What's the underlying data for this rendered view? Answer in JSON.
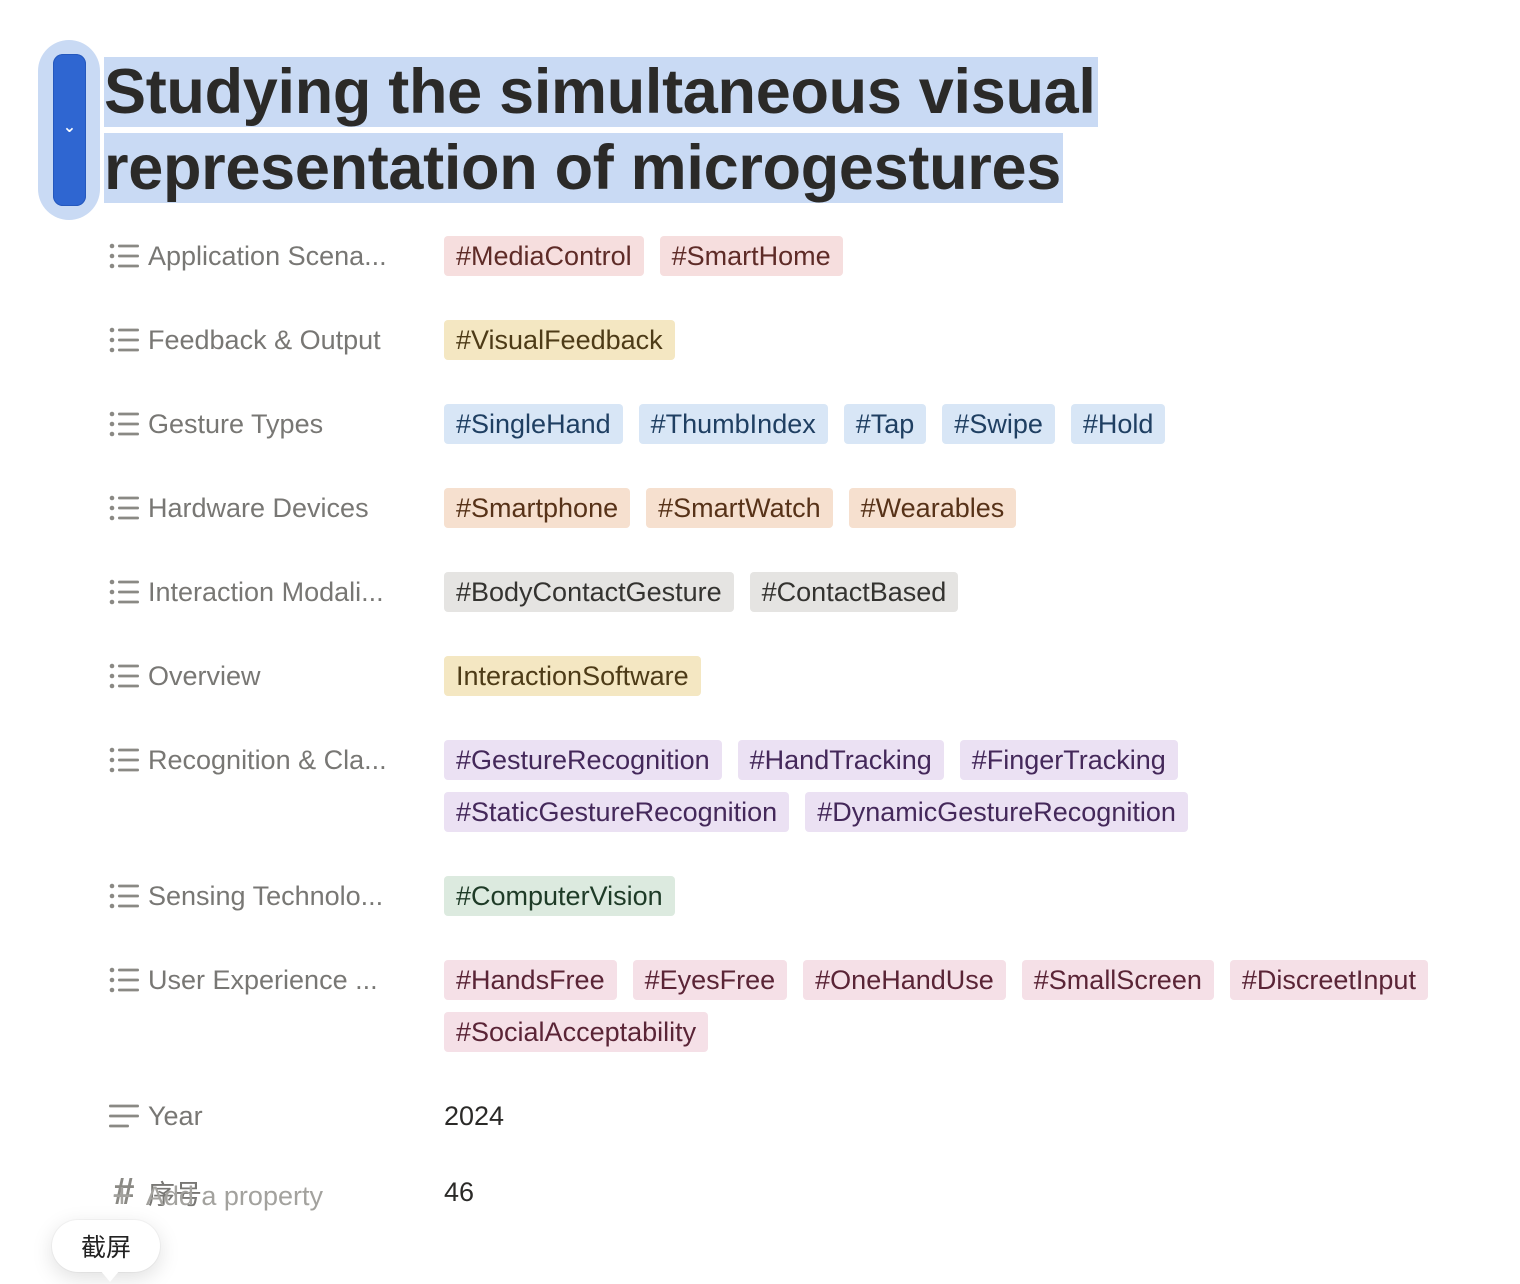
{
  "title_line1": "Studying the simultaneous visual",
  "title_line2": "representation of microgestures",
  "properties": [
    {
      "name": "Application Scena...",
      "icon": "list-icon",
      "tags": [
        {
          "label": "#MediaControl",
          "color": "red"
        },
        {
          "label": "#SmartHome",
          "color": "red"
        }
      ]
    },
    {
      "name": "Feedback & Output",
      "icon": "list-icon",
      "tags": [
        {
          "label": "#VisualFeedback",
          "color": "yellow"
        }
      ]
    },
    {
      "name": "Gesture Types",
      "icon": "list-icon",
      "tags": [
        {
          "label": "#SingleHand",
          "color": "blue"
        },
        {
          "label": "#ThumbIndex",
          "color": "blue"
        },
        {
          "label": "#Tap",
          "color": "blue"
        },
        {
          "label": "#Swipe",
          "color": "blue"
        },
        {
          "label": "#Hold",
          "color": "blue"
        }
      ]
    },
    {
      "name": "Hardware Devices",
      "icon": "list-icon",
      "tags": [
        {
          "label": "#Smartphone",
          "color": "orange"
        },
        {
          "label": "#SmartWatch",
          "color": "orange"
        },
        {
          "label": "#Wearables",
          "color": "orange"
        }
      ]
    },
    {
      "name": "Interaction Modali...",
      "icon": "list-icon",
      "tags": [
        {
          "label": "#BodyContactGesture",
          "color": "gray"
        },
        {
          "label": "#ContactBased",
          "color": "gray"
        }
      ]
    },
    {
      "name": "Overview",
      "icon": "list-icon",
      "tags": [
        {
          "label": "InteractionSoftware",
          "color": "yellow"
        }
      ]
    },
    {
      "name": "Recognition & Cla...",
      "icon": "list-icon",
      "tags": [
        {
          "label": "#GestureRecognition",
          "color": "purple"
        },
        {
          "label": "#HandTracking",
          "color": "purple"
        },
        {
          "label": "#FingerTracking",
          "color": "purple"
        },
        {
          "label": "#StaticGestureRecognition",
          "color": "purple"
        },
        {
          "label": "#DynamicGestureRecognition",
          "color": "purple"
        }
      ]
    },
    {
      "name": "Sensing Technolo...",
      "icon": "list-icon",
      "tags": [
        {
          "label": "#ComputerVision",
          "color": "green"
        }
      ]
    },
    {
      "name": "User Experience ...",
      "icon": "list-icon",
      "tags": [
        {
          "label": "#HandsFree",
          "color": "pink"
        },
        {
          "label": "#EyesFree",
          "color": "pink"
        },
        {
          "label": "#OneHandUse",
          "color": "pink"
        },
        {
          "label": "#SmallScreen",
          "color": "pink"
        },
        {
          "label": "#DiscreetInput",
          "color": "pink"
        },
        {
          "label": "#SocialAcceptability",
          "color": "pink"
        }
      ]
    },
    {
      "name": "Year",
      "icon": "text-icon",
      "value": "2024"
    },
    {
      "name": "序号",
      "icon": "number-icon",
      "value": "46"
    }
  ],
  "add_property_label": "Add a property",
  "tooltip_label": "截屏",
  "colors": {
    "selection": "#c9daf4",
    "handle": "#2f66d1"
  }
}
